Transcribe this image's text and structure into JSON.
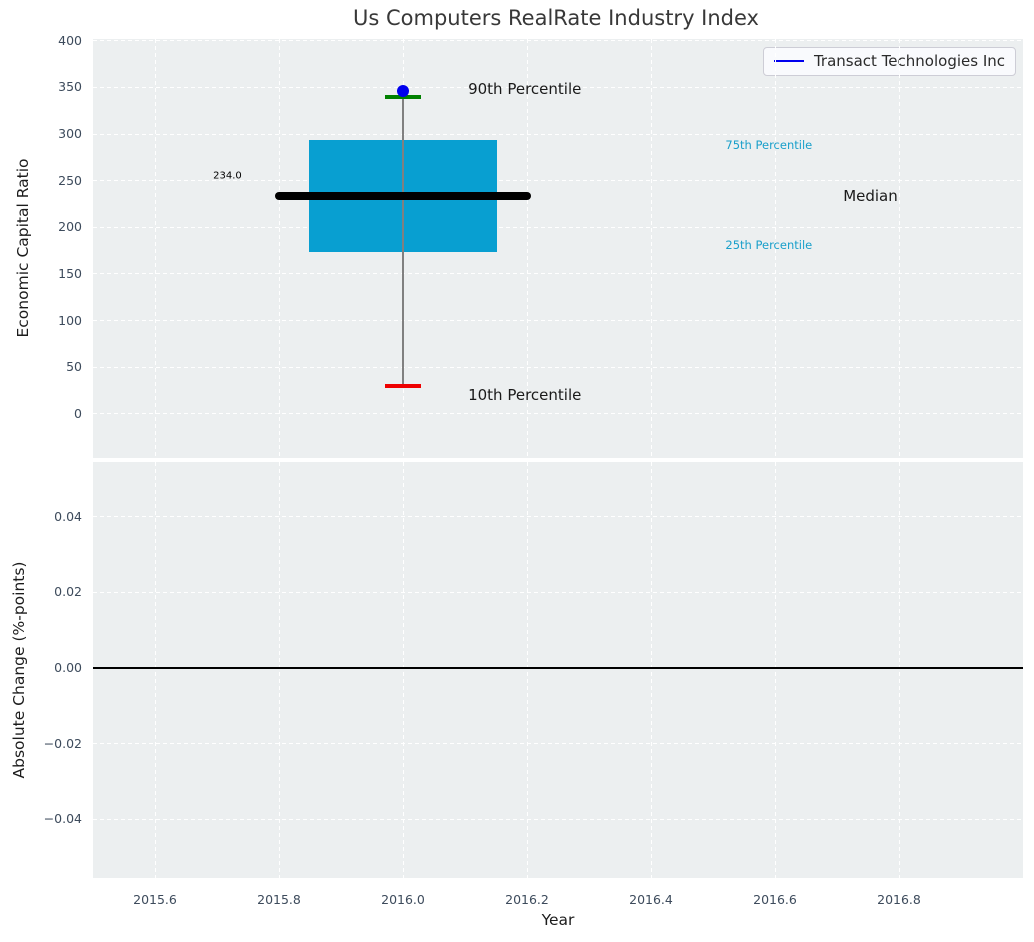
{
  "figure": {
    "background": "#ffffff",
    "axes_background": "#eceff0",
    "grid_color": "#ffffff",
    "tick_label_color": "#3d4b5c",
    "title_color": "#383838"
  },
  "chart_data": {
    "type": "box",
    "title": "Us Computers RealRate Industry Index",
    "xlabel": "Year",
    "grid": "white dashed on light gray",
    "xlim": [
      2015.5,
      2017.0
    ],
    "xticks": [
      {
        "v": 2015.6,
        "label": "2015.6"
      },
      {
        "v": 2015.8,
        "label": "2015.8"
      },
      {
        "v": 2016.0,
        "label": "2016.0"
      },
      {
        "v": 2016.2,
        "label": "2016.2"
      },
      {
        "v": 2016.4,
        "label": "2016.4"
      },
      {
        "v": 2016.6,
        "label": "2016.6"
      },
      {
        "v": 2016.8,
        "label": "2016.8"
      }
    ],
    "legend": {
      "position": "upper right",
      "entries": [
        {
          "label": "Transact Technologies Inc",
          "color": "#0000ee"
        }
      ]
    },
    "subplots": [
      {
        "name": "economic-capital-ratio",
        "ylabel": "Economic Capital Ratio",
        "ylim": [
          -47.5,
          402
        ],
        "yticks": [
          {
            "v": 400,
            "label": "400"
          },
          {
            "v": 350,
            "label": "350"
          },
          {
            "v": 300,
            "label": "300"
          },
          {
            "v": 250,
            "label": "250"
          },
          {
            "v": 200,
            "label": "200"
          },
          {
            "v": 150,
            "label": "150"
          },
          {
            "v": 100,
            "label": "100"
          },
          {
            "v": 50,
            "label": "50"
          },
          {
            "v": 0,
            "label": "0"
          }
        ],
        "box": {
          "x": 2016.0,
          "p10": 30,
          "p25": 173,
          "median": 234.0,
          "p75": 294,
          "p90": 340,
          "box_halfwidth": 0.152,
          "median_halfwidth": 0.207,
          "cap_halfwidth": 0.029,
          "colors": {
            "box": "#089fd1",
            "median": "#000000",
            "p90": "#008000",
            "p10": "#ee0000",
            "stem": "#808080"
          }
        },
        "series": [
          {
            "name": "Transact Technologies Inc",
            "type": "scatter",
            "color": "#0000ee",
            "points": [
              {
                "x": 2016.0,
                "y": 346
              }
            ]
          }
        ],
        "annotations": [
          {
            "text": "234.0",
            "x": 2015.74,
            "y": 255,
            "align": "right",
            "color": "#000000",
            "size": 10
          },
          {
            "text": "90th Percentile",
            "x": 2016.105,
            "y": 348,
            "align": "left",
            "color": "#1a1a1a",
            "size": 15
          },
          {
            "text": "75th Percentile",
            "x": 2016.52,
            "y": 288,
            "align": "left",
            "color": "#189fca",
            "size": 11.5
          },
          {
            "text": "Median",
            "x": 2016.71,
            "y": 234,
            "align": "left",
            "color": "#1a1a1a",
            "size": 15
          },
          {
            "text": "25th Percentile",
            "x": 2016.52,
            "y": 181,
            "align": "left",
            "color": "#189fca",
            "size": 11.5
          },
          {
            "text": "10th Percentile",
            "x": 2016.105,
            "y": 20,
            "align": "left",
            "color": "#1a1a1a",
            "size": 15
          }
        ]
      },
      {
        "name": "absolute-change",
        "ylabel": "Absolute Change (%-points)",
        "ylim": [
          -0.0555,
          0.0545
        ],
        "yticks": [
          {
            "v": 0.04,
            "label": "0.04"
          },
          {
            "v": 0.02,
            "label": "0.02"
          },
          {
            "v": 0.0,
            "label": "0.00"
          },
          {
            "v": -0.02,
            "label": "−0.02"
          },
          {
            "v": -0.04,
            "label": "−0.04"
          }
        ],
        "zero_line": {
          "y": 0.0,
          "color": "#000000"
        }
      }
    ]
  }
}
